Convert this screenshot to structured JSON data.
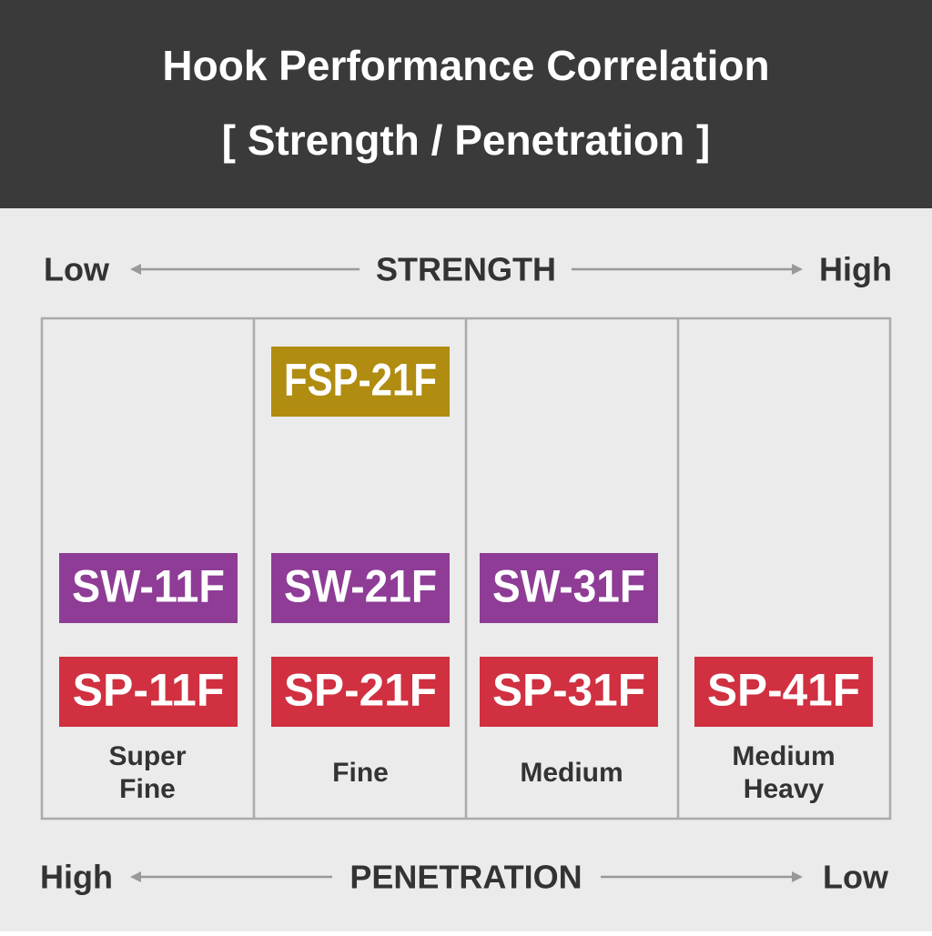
{
  "header": {
    "title_lines": [
      "Hook Performance Correlation",
      "[ Strength / Penetration ]"
    ]
  },
  "strength_axis": {
    "low": "Low",
    "label": "STRENGTH",
    "high": "High"
  },
  "badge_rows": [
    {
      "color": "#b08c10",
      "cells": [
        null,
        "FSP-21F",
        null,
        null
      ]
    },
    {
      "color": "#8e3c96",
      "cells": [
        "SW-11F",
        "SW-21F",
        "SW-31F",
        null
      ]
    },
    {
      "color": "#d03040",
      "cells": [
        "SP-11F",
        "SP-21F",
        "SP-31F",
        "SP-41F"
      ]
    }
  ],
  "column_labels": [
    [
      "Super",
      "Fine"
    ],
    [
      "Fine"
    ],
    [
      "Medium"
    ],
    [
      "Medium",
      "Heavy"
    ]
  ],
  "penetration_axis": {
    "high": "High",
    "label": "PENETRATION",
    "low": "Low"
  }
}
